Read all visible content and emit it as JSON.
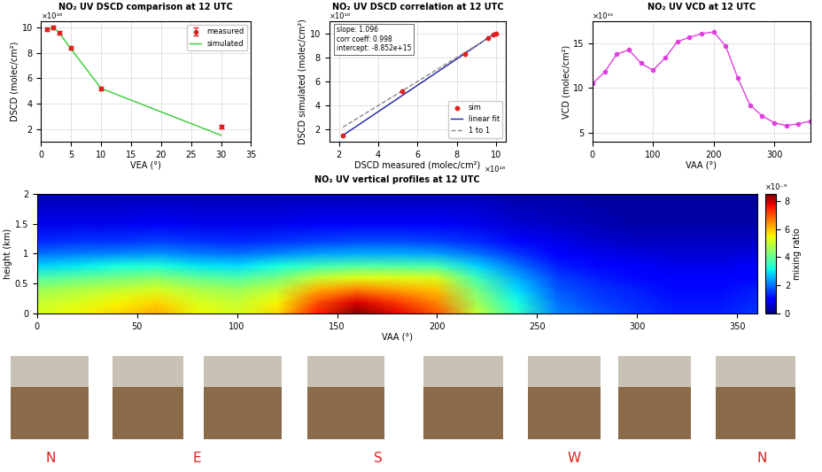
{
  "chart_data": [
    {
      "type": "line",
      "title": "NO₂ UV DSCD comparison at 12 UTC",
      "x_label": "VEA (°)",
      "y_label": "DSCD (molec/cm²)",
      "y_offset_text": "×10¹⁶",
      "xlim": [
        0,
        35
      ],
      "xticks": [
        0,
        5,
        10,
        15,
        20,
        25,
        30,
        35
      ],
      "ylim": [
        1,
        10.5
      ],
      "yticks": [
        2,
        4,
        6,
        8,
        10
      ],
      "grid": true,
      "legend": "upper right",
      "series": [
        {
          "name": "measured",
          "type": "errorbar",
          "color": "#e02020",
          "marker": "circle",
          "line_style": "none",
          "x": [
            1,
            2,
            3,
            5,
            10,
            30
          ],
          "values": [
            9.85,
            10.0,
            9.6,
            8.4,
            5.2,
            2.2
          ],
          "errors": [
            0.15,
            0.15,
            0.15,
            0.15,
            0.15,
            0.15
          ]
        },
        {
          "name": "simulated",
          "type": "line",
          "color": "#33cc33",
          "marker": "none",
          "line_style": "solid",
          "x": [
            1,
            2,
            3,
            5,
            10,
            30
          ],
          "values": [
            9.9,
            10.0,
            9.6,
            8.3,
            5.2,
            1.5
          ]
        }
      ]
    },
    {
      "type": "scatter",
      "title": "NO₂ UV DSCD correlation at 12 UTC",
      "x_label": "DSCD measured (molec/cm²)",
      "y_label": "DSCD simulated (molec/cm²)",
      "x_offset_text": "×10¹⁶",
      "y_offset_text": "×10¹⁶",
      "annotations": [
        "slope: 1.096",
        "corr coeff: 0.998",
        "intercept: -8.852e+15"
      ],
      "xlim": [
        1.5,
        10.5
      ],
      "xticks": [
        2,
        4,
        6,
        8,
        10
      ],
      "ylim": [
        1,
        11
      ],
      "yticks": [
        2,
        4,
        6,
        8,
        10
      ],
      "grid": true,
      "legend": "lower right",
      "series": [
        {
          "name": "sim",
          "type": "scatter",
          "color": "#e02020",
          "marker": "circle",
          "line_style": "none",
          "x": [
            2.2,
            5.2,
            8.4,
            9.6,
            9.85,
            10.0
          ],
          "values": [
            1.5,
            5.2,
            8.3,
            9.6,
            9.9,
            10.0
          ]
        },
        {
          "name": "linear fit",
          "type": "line",
          "color": "#1a1aa6",
          "marker": "none",
          "line_style": "solid",
          "x": [
            2.2,
            10.0
          ],
          "values": [
            1.52,
            10.07
          ]
        },
        {
          "name": "1 to 1",
          "type": "line",
          "color": "#888888",
          "marker": "none",
          "line_style": "dashed",
          "x": [
            2.2,
            10.0
          ],
          "values": [
            2.2,
            10.0
          ]
        }
      ]
    },
    {
      "type": "line",
      "title": "NO₂ UV VCD at 12 UTC",
      "x_label": "VAA (°)",
      "y_label": "VCD (molec/cm²)",
      "y_offset_text": "×10¹⁵",
      "xlim": [
        0,
        360
      ],
      "xticks": [
        0,
        100,
        200,
        300
      ],
      "ylim": [
        4,
        17.5
      ],
      "yticks": [
        5,
        10,
        15
      ],
      "grid": true,
      "series": [
        {
          "name": "VCD",
          "type": "line",
          "color": "#e040e0",
          "marker": "circle",
          "line_style": "solid",
          "x": [
            0,
            20,
            40,
            60,
            80,
            100,
            120,
            140,
            160,
            180,
            200,
            220,
            240,
            260,
            280,
            300,
            320,
            340,
            360
          ],
          "values": [
            10.5,
            11.8,
            13.8,
            14.3,
            12.8,
            12.0,
            13.4,
            15.2,
            15.7,
            16.1,
            16.3,
            14.7,
            11.1,
            8.1,
            6.9,
            6.1,
            5.8,
            6.0,
            6.3
          ]
        }
      ]
    },
    {
      "type": "heatmap",
      "title": "NO₂ UV vertical profiles at 12 UTC",
      "x_label": "VAA (°)",
      "y_label": "height (km)",
      "xlim": [
        0,
        360
      ],
      "xticks": [
        0,
        50,
        100,
        150,
        200,
        250,
        300,
        350
      ],
      "ylim": [
        0,
        2
      ],
      "yticks": [
        0,
        0.5,
        1,
        1.5,
        2
      ],
      "x": [
        0,
        20,
        40,
        60,
        80,
        100,
        120,
        140,
        160,
        180,
        200,
        220,
        240,
        260,
        280,
        300,
        320,
        340,
        360
      ],
      "y": [
        0,
        0.2,
        0.4,
        0.6,
        0.8,
        1.0,
        1.2,
        1.5,
        2.0
      ],
      "values": [
        [
          5.2,
          5.5,
          5.8,
          6.2,
          5.5,
          5.2,
          5.8,
          7.5,
          8.5,
          7.8,
          7.0,
          5.0,
          3.5,
          2.2,
          1.8,
          1.5,
          1.3,
          1.3,
          1.5
        ],
        [
          5.0,
          5.2,
          5.5,
          5.8,
          5.2,
          5.0,
          5.5,
          7.0,
          7.8,
          7.2,
          6.5,
          4.6,
          3.2,
          2.0,
          1.6,
          1.4,
          1.2,
          1.2,
          1.4
        ],
        [
          4.6,
          4.8,
          5.0,
          5.2,
          4.8,
          4.6,
          5.0,
          6.2,
          6.6,
          6.3,
          6.0,
          4.2,
          2.9,
          1.8,
          1.5,
          1.3,
          1.1,
          1.1,
          1.3
        ],
        [
          3.8,
          4.0,
          4.2,
          4.4,
          4.0,
          3.8,
          4.2,
          5.0,
          5.3,
          5.3,
          5.2,
          3.6,
          2.5,
          1.6,
          1.3,
          1.1,
          1.0,
          1.0,
          1.1
        ],
        [
          2.8,
          3.0,
          3.2,
          3.3,
          3.0,
          2.9,
          3.2,
          3.6,
          3.8,
          3.8,
          3.7,
          2.8,
          2.0,
          1.3,
          1.1,
          0.9,
          0.8,
          0.8,
          0.9
        ],
        [
          2.0,
          2.1,
          2.2,
          2.3,
          2.1,
          2.0,
          2.2,
          2.4,
          2.5,
          2.5,
          2.4,
          2.0,
          1.5,
          1.0,
          0.8,
          0.7,
          0.6,
          0.6,
          0.7
        ],
        [
          1.4,
          1.5,
          1.5,
          1.6,
          1.5,
          1.4,
          1.5,
          1.6,
          1.7,
          1.7,
          1.6,
          1.4,
          1.1,
          0.8,
          0.6,
          0.5,
          0.5,
          0.5,
          0.5
        ],
        [
          0.8,
          0.8,
          0.8,
          0.9,
          0.8,
          0.8,
          0.8,
          0.9,
          0.9,
          0.9,
          0.9,
          0.8,
          0.6,
          0.5,
          0.4,
          0.3,
          0.3,
          0.3,
          0.3
        ],
        [
          0.4,
          0.4,
          0.4,
          0.4,
          0.4,
          0.4,
          0.4,
          0.4,
          0.4,
          0.4,
          0.4,
          0.4,
          0.3,
          0.3,
          0.2,
          0.2,
          0.2,
          0.2,
          0.2
        ]
      ],
      "colorbar": {
        "label": "mixing ratio",
        "offset_text": "×10⁻⁹",
        "range": [
          0,
          8.5
        ],
        "ticks": [
          0,
          2,
          4,
          6,
          8
        ]
      }
    }
  ],
  "photo_labels": [
    "N",
    "E",
    "S",
    "W",
    "N"
  ]
}
